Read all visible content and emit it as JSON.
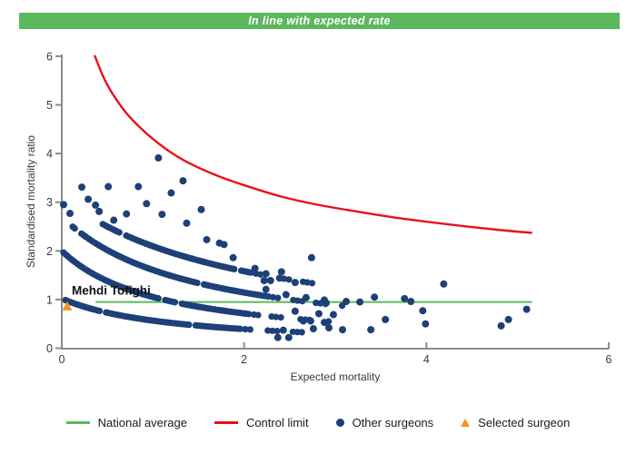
{
  "banner": {
    "text": "In line with expected rate",
    "bg_color": "#5cb85c",
    "text_color": "#ffffff"
  },
  "chart_data": {
    "type": "scatter",
    "title": "",
    "xlabel": "Expected mortality",
    "ylabel": "Standardised mortality ratio",
    "xlim": [
      0,
      6
    ],
    "ylim": [
      0,
      6
    ],
    "grid": false,
    "x_ticks": {
      "values": [
        0,
        2,
        4,
        6
      ],
      "labels": [
        "0",
        "2",
        "4",
        "6"
      ]
    },
    "y_ticks": {
      "values": [
        0,
        1,
        2,
        3,
        4,
        5,
        6
      ],
      "labels": [
        "0",
        "1",
        "2",
        "3",
        "4",
        "5",
        "6"
      ]
    },
    "axis_color": "#8a8a8a",
    "tick_label_color": "#3a3a3a",
    "national_average": {
      "y": 0.95,
      "x_start": 0.37,
      "x_end": 5.16,
      "color": "#5db75d"
    },
    "control_limit": {
      "color": "#e8101c",
      "points": [
        [
          0.36,
          6.02
        ],
        [
          0.45,
          5.6
        ],
        [
          0.55,
          5.25
        ],
        [
          0.7,
          4.85
        ],
        [
          0.85,
          4.55
        ],
        [
          1.0,
          4.3
        ],
        [
          1.2,
          4.02
        ],
        [
          1.4,
          3.8
        ],
        [
          1.7,
          3.55
        ],
        [
          2.0,
          3.35
        ],
        [
          2.4,
          3.12
        ],
        [
          2.8,
          2.95
        ],
        [
          3.2,
          2.82
        ],
        [
          3.6,
          2.7
        ],
        [
          4.0,
          2.6
        ],
        [
          4.4,
          2.51
        ],
        [
          4.8,
          2.43
        ],
        [
          5.16,
          2.37
        ]
      ]
    },
    "selected_surgeon": {
      "label": "Mehdi Tofighi",
      "x": 0.06,
      "y": 0.86,
      "color": "#f6921e"
    },
    "other_surgeons": {
      "color": "#1d4078",
      "bands": [
        {
          "k": 1.02,
          "b": 0.8,
          "x_start": 0.04,
          "dense_end": 1.95,
          "x_end": 2.75
        },
        {
          "k": 2.0,
          "b": 0.9,
          "x_start": 0.02,
          "dense_end": 2.05,
          "x_end": 2.95
        },
        {
          "k": 2.7,
          "b": 0.68,
          "x_start": 0.12,
          "dense_end": 2.25,
          "x_end": 3.1
        },
        {
          "k": 3.1,
          "b": 0.48,
          "x_start": 0.45,
          "dense_end": 2.05,
          "x_end": 2.75
        }
      ],
      "points": [
        [
          0.02,
          2.95
        ],
        [
          0.09,
          2.77
        ],
        [
          0.22,
          3.31
        ],
        [
          0.29,
          3.06
        ],
        [
          0.37,
          2.94
        ],
        [
          0.41,
          2.81
        ],
        [
          0.51,
          3.32
        ],
        [
          0.57,
          2.63
        ],
        [
          0.71,
          2.76
        ],
        [
          0.84,
          3.32
        ],
        [
          0.93,
          2.97
        ],
        [
          1.06,
          3.91
        ],
        [
          1.1,
          2.75
        ],
        [
          1.2,
          3.19
        ],
        [
          1.33,
          3.44
        ],
        [
          1.37,
          2.57
        ],
        [
          1.53,
          2.85
        ],
        [
          1.59,
          2.23
        ],
        [
          1.73,
          2.16
        ],
        [
          1.78,
          2.13
        ],
        [
          1.88,
          1.86
        ],
        [
          2.12,
          1.64
        ],
        [
          2.22,
          1.39
        ],
        [
          2.29,
          1.39
        ],
        [
          2.41,
          1.57
        ],
        [
          2.74,
          1.86
        ],
        [
          2.24,
          1.53
        ],
        [
          2.39,
          1.44
        ],
        [
          2.56,
          1.35
        ],
        [
          2.24,
          1.21
        ],
        [
          2.46,
          1.1
        ],
        [
          2.68,
          1.04
        ],
        [
          2.88,
          0.99
        ],
        [
          3.12,
          0.96
        ],
        [
          3.27,
          0.95
        ],
        [
          2.9,
          0.93
        ],
        [
          2.56,
          0.76
        ],
        [
          2.82,
          0.71
        ],
        [
          2.98,
          0.69
        ],
        [
          2.65,
          0.56
        ],
        [
          2.73,
          0.56
        ],
        [
          2.88,
          0.53
        ],
        [
          2.43,
          0.37
        ],
        [
          2.76,
          0.4
        ],
        [
          2.93,
          0.42
        ],
        [
          3.08,
          0.38
        ],
        [
          3.39,
          0.38
        ],
        [
          2.37,
          0.22
        ],
        [
          2.49,
          0.22
        ],
        [
          3.43,
          1.05
        ],
        [
          3.55,
          0.59
        ],
        [
          3.76,
          1.02
        ],
        [
          3.83,
          0.96
        ],
        [
          3.96,
          0.77
        ],
        [
          3.99,
          0.5
        ],
        [
          4.19,
          1.32
        ],
        [
          4.82,
          0.46
        ],
        [
          4.9,
          0.59
        ],
        [
          5.1,
          0.8
        ]
      ]
    }
  },
  "legend": {
    "items": [
      {
        "label": "National average",
        "marker": "line",
        "color": "#5db75d"
      },
      {
        "label": "Control limit",
        "marker": "line",
        "color": "#e8101c"
      },
      {
        "label": "Other surgeons",
        "marker": "dot",
        "color": "#1d4078"
      },
      {
        "label": "Selected surgeon",
        "marker": "triangle",
        "color": "#f6921e"
      }
    ]
  }
}
